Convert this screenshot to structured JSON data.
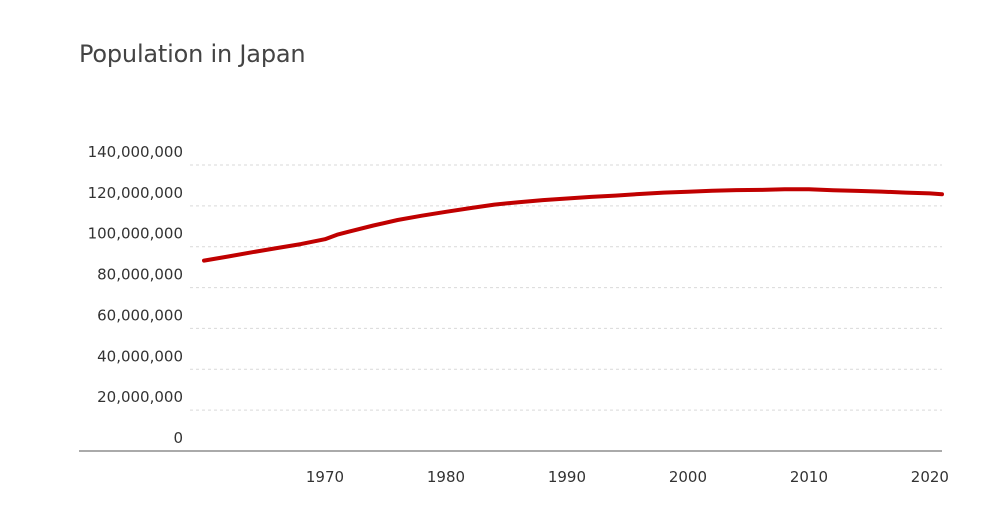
{
  "chart_data": {
    "type": "line",
    "title": "Population in Japan",
    "xlabel": "",
    "ylabel": "",
    "xlim": [
      1960,
      2021
    ],
    "ylim": [
      0,
      140000000
    ],
    "x_ticks": [
      1970,
      1980,
      1990,
      2000,
      2010,
      2020
    ],
    "x_tick_labels": [
      "1970",
      "1980",
      "1990",
      "2000",
      "2010",
      "2020"
    ],
    "y_ticks": [
      0,
      20000000,
      40000000,
      60000000,
      80000000,
      100000000,
      120000000,
      140000000
    ],
    "y_tick_labels": [
      "0",
      "20,000,000",
      "40,000,000",
      "60,000,000",
      "80,000,000",
      "100,000,000",
      "120,000,000",
      "140,000,000"
    ],
    "grid": true,
    "legend": "none",
    "series": [
      {
        "color": "#c00000",
        "x": [
          1960,
          1962,
          1964,
          1966,
          1968,
          1970,
          1971,
          1972,
          1974,
          1976,
          1978,
          1980,
          1982,
          1984,
          1986,
          1988,
          1990,
          1992,
          1994,
          1996,
          1998,
          2000,
          2002,
          2004,
          2006,
          2008,
          2010,
          2012,
          2014,
          2016,
          2018,
          2020,
          2021
        ],
        "values": [
          93200000,
          95200000,
          97300000,
          99300000,
          101300000,
          103700000,
          105900000,
          107400000,
          110400000,
          113100000,
          115200000,
          117100000,
          118900000,
          120600000,
          121800000,
          122800000,
          123600000,
          124400000,
          125000000,
          125800000,
          126500000,
          126900000,
          127400000,
          127700000,
          127800000,
          128100000,
          128100000,
          127600000,
          127300000,
          127000000,
          126500000,
          126100000,
          125700000
        ]
      }
    ]
  }
}
